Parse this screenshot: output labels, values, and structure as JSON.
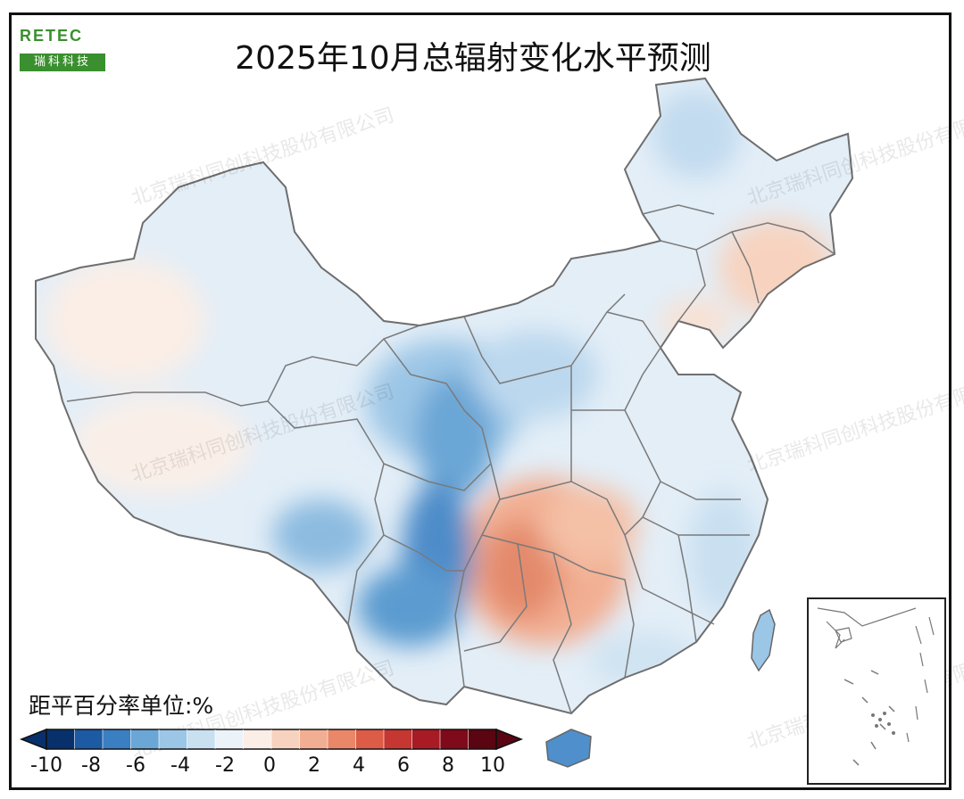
{
  "title": "2025年10月总辐射变化水平预测",
  "logo": {
    "text_top": "RETEC",
    "text_bottom": "瑞科科技"
  },
  "watermark": "北京瑞科同创科技股份有限公司",
  "legend": {
    "title": "距平百分率单位:%",
    "tick_labels": [
      "-10",
      "-8",
      "-6",
      "-4",
      "-2",
      "0",
      "2",
      "4",
      "6",
      "8",
      "10"
    ],
    "colors": [
      "#08306b",
      "#1c5aa3",
      "#3a7fc1",
      "#6aa6d6",
      "#9cc6e6",
      "#c9e0f1",
      "#ebf2f8",
      "#fbeee6",
      "#f7d3bf",
      "#f2ae92",
      "#ea8769",
      "#dc5c47",
      "#c63731",
      "#a81b24",
      "#7f0a19",
      "#5a0511"
    ]
  },
  "map_regions": [
    {
      "name": "northeast-positive",
      "value": 2,
      "color": "#f7d3bf"
    },
    {
      "name": "central-south-positive",
      "value": 4,
      "color": "#ea8769"
    },
    {
      "name": "southwest-negative",
      "value": -6,
      "color": "#3a7fc1"
    },
    {
      "name": "northwest-negative",
      "value": -4,
      "color": "#6aa6d6"
    },
    {
      "name": "xinjiang-slight-positive",
      "value": 1,
      "color": "#fbeee6"
    },
    {
      "name": "hainan-negative",
      "value": -6,
      "color": "#3a7fc1"
    }
  ]
}
